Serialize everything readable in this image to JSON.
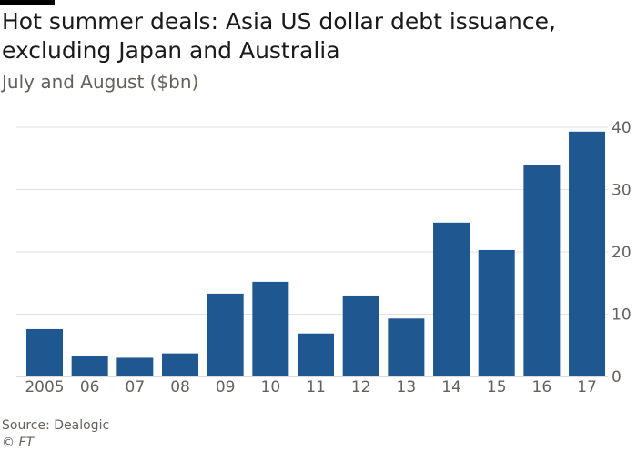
{
  "header": {
    "title": "Hot summer deals: Asia US dollar debt issuance, excluding Japan and Australia",
    "subtitle": "July and August ($bn)"
  },
  "footer": {
    "source": "Source: Dealogic",
    "credit": "© FT"
  },
  "colors": {
    "bar": "#1f5790",
    "grid": "#e6e1dc",
    "axis_text": "#66605c",
    "title": "#1a1a1a"
  },
  "chart_data": {
    "type": "bar",
    "title": "Hot summer deals: Asia US dollar debt issuance, excluding Japan and Australia",
    "subtitle": "July and August ($bn)",
    "categories": [
      "2005",
      "06",
      "07",
      "08",
      "09",
      "10",
      "11",
      "12",
      "13",
      "14",
      "15",
      "16",
      "17"
    ],
    "values": [
      7.6,
      3.3,
      3.0,
      3.7,
      13.3,
      15.2,
      6.9,
      13.0,
      9.3,
      24.7,
      20.3,
      33.9,
      39.3
    ],
    "ylim": [
      0,
      40
    ],
    "yticks": [
      "0",
      "10",
      "20",
      "30",
      "40"
    ],
    "y_axis_position": "right",
    "grid": true,
    "legend": "none"
  }
}
